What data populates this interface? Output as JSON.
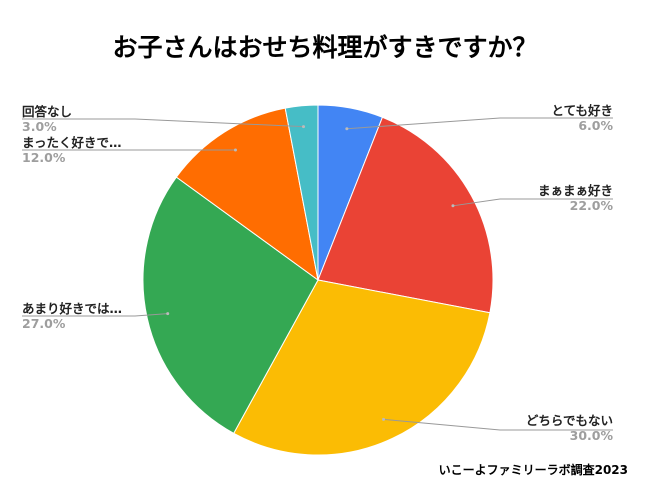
{
  "chart_data": {
    "type": "pie",
    "title": "お子さんはおせち料理がすきですか？",
    "slices": [
      {
        "label": "とても好き",
        "value": 6.0,
        "display": "6.0%",
        "color": "#4285f4"
      },
      {
        "label": "まぁまぁ好き",
        "value": 22.0,
        "display": "22.0%",
        "color": "#ea4335"
      },
      {
        "label": "どちらでもない",
        "value": 30.0,
        "display": "30.0%",
        "color": "#fbbc04"
      },
      {
        "label": "あまり好きでは…",
        "value": 27.0,
        "display": "27.0%",
        "color": "#34a853"
      },
      {
        "label": "まったく好きで…",
        "value": 12.0,
        "display": "12.0%",
        "color": "#ff6d01"
      },
      {
        "label": "回答なし",
        "value": 3.0,
        "display": "3.0%",
        "color": "#46bdc6"
      }
    ],
    "start_angle": "top",
    "direction": "clockwise",
    "legend": "none"
  },
  "footer": "いこーよファミリーラボ調査2023"
}
